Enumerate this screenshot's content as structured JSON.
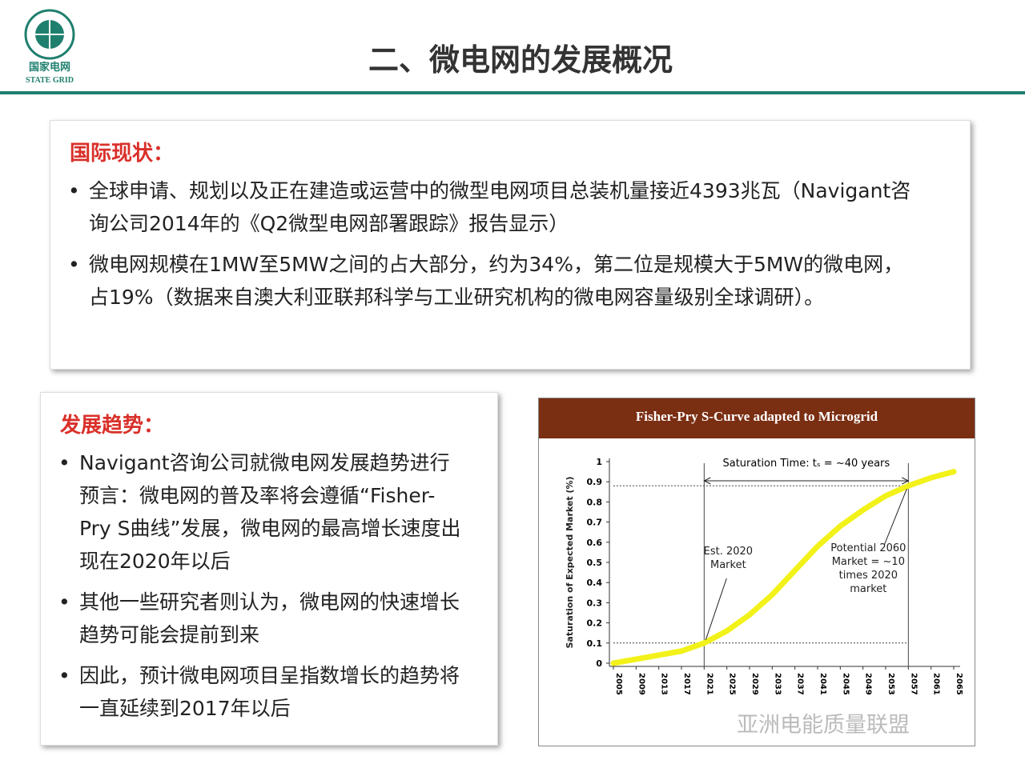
{
  "header": {
    "title": "二、微电网的发展概况",
    "logo_cn": "国家电网",
    "logo_en": "STATE GRID"
  },
  "section1": {
    "heading": "国际现状：",
    "bullets": [
      "全球申请、规划以及正在建造或运营中的微型电网项目总装机量接近4393兆瓦（Navigant咨询公司2014年的《Q2微型电网部署跟踪》报告显示）",
      "微电网规模在1MW至5MW之间的占大部分，约为34%，第二位是规模大于5MW的微电网，占19%（数据来自澳大利亚联邦科学与工业研究机构的微电网容量级别全球调研）。"
    ]
  },
  "section2": {
    "heading": "发展趋势：",
    "bullets": [
      "Navigant咨询公司就微电网发展趋势进行预言：微电网的普及率将会遵循“Fisher-Pry S曲线”发展，微电网的最高增长速度出现在2020年以后",
      "其他一些研究者则认为，微电网的快速增长趋势可能会提前到来",
      "因此，预计微电网项目呈指数增长的趋势将一直延续到2017年以后"
    ]
  },
  "chart_data": {
    "type": "line",
    "title": "Fisher-Pry S-Curve adapted to Microgrid",
    "y_label": "Saturation of Expected Market (%)",
    "annotations": [
      "Saturation Time: tₛ = ~40 years",
      "Est. 2020 Market",
      "Potential 2060 Market = ~10 times 2020 market"
    ],
    "x": [
      2005,
      2009,
      2013,
      2017,
      2021,
      2025,
      2029,
      2033,
      2037,
      2041,
      2045,
      2049,
      2053,
      2057,
      2061,
      2065
    ],
    "series": [
      {
        "color": "#f2f21a",
        "values": [
          0.0,
          0.02,
          0.04,
          0.06,
          0.1,
          0.16,
          0.24,
          0.34,
          0.46,
          0.58,
          0.68,
          0.76,
          0.83,
          0.88,
          0.92,
          0.95
        ]
      }
    ],
    "xlim": [
      2005,
      2065
    ],
    "xticks": [
      2005,
      2009,
      2013,
      2017,
      2021,
      2025,
      2029,
      2033,
      2037,
      2041,
      2045,
      2049,
      2053,
      2057,
      2061,
      2065
    ],
    "ylim": [
      0,
      1
    ],
    "yticks": [
      0,
      0.1,
      0.2,
      0.3,
      0.4,
      0.5,
      0.6,
      0.7,
      0.8,
      0.9,
      1
    ]
  },
  "watermark": "亚洲电能质量联盟"
}
